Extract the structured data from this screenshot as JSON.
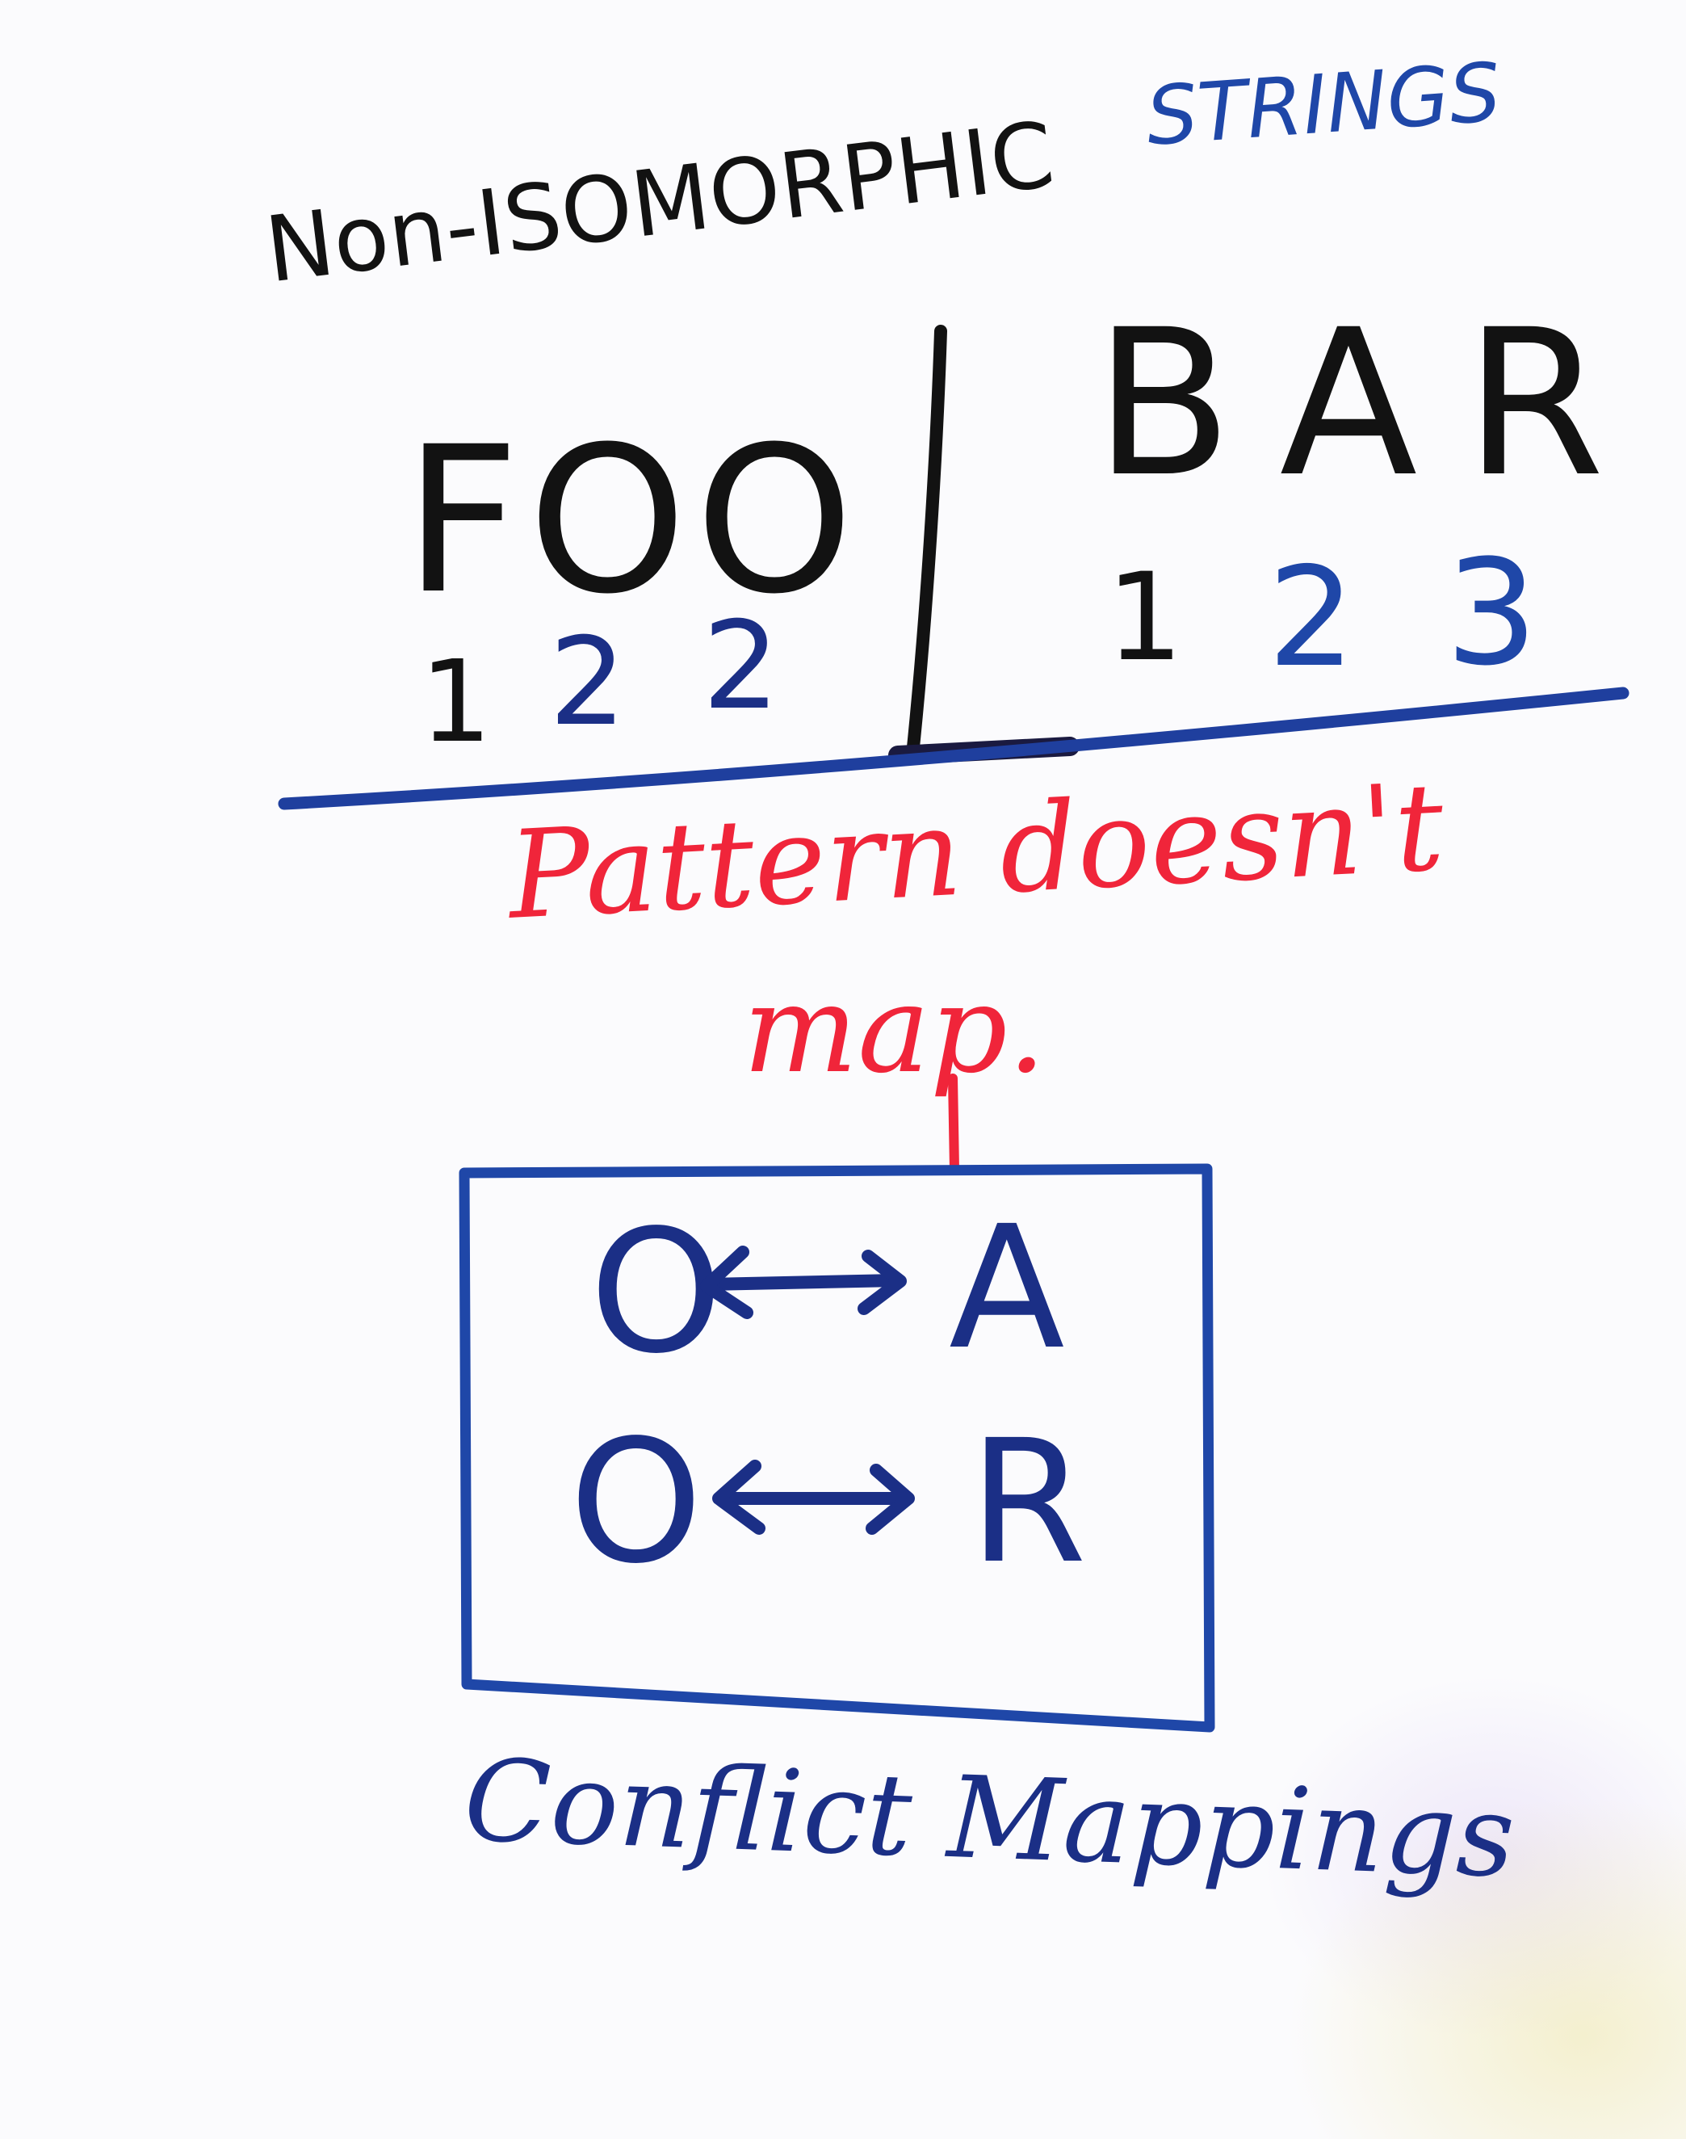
{
  "title": {
    "prefix": "Non-ISOMORPHIC",
    "suffix": "STRINGS"
  },
  "left": {
    "word": "FOO",
    "pattern": [
      "1",
      "2",
      "2"
    ]
  },
  "right": {
    "word": "BAR",
    "pattern": [
      "1",
      "2",
      "3"
    ]
  },
  "verdict": {
    "line1": "Pattern doesn't",
    "line2": "map."
  },
  "mappings": [
    {
      "from": "O",
      "to": "A"
    },
    {
      "from": "O",
      "to": "R"
    }
  ],
  "caption": "Conflict Mappings",
  "colors": {
    "black_ink": "#121212",
    "blue_ink": "#1f47a8",
    "navy_ink": "#1b2f86",
    "red_ink": "#f0253a"
  },
  "icons": {
    "arrow": "double-headed-arrow-icon"
  }
}
